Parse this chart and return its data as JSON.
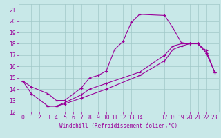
{
  "xlabel": "Windchill (Refroidissement éolien,°C)",
  "xlim": [
    -0.5,
    23.5
  ],
  "ylim": [
    12,
    21.5
  ],
  "xticks": [
    0,
    1,
    2,
    3,
    4,
    5,
    6,
    7,
    8,
    9,
    10,
    11,
    12,
    13,
    14,
    17,
    18,
    19,
    20,
    21,
    22,
    23
  ],
  "yticks": [
    12,
    13,
    14,
    15,
    16,
    17,
    18,
    19,
    20,
    21
  ],
  "bg_color": "#c8e8e8",
  "line_color": "#990099",
  "grid_color": "#a0c8c8",
  "lines": [
    {
      "x": [
        0,
        1,
        3,
        4,
        5,
        7,
        8,
        9,
        10,
        11,
        12,
        13,
        14,
        17,
        18,
        19,
        20,
        21,
        22,
        23
      ],
      "y": [
        14.7,
        14.2,
        13.6,
        13.0,
        13.0,
        14.1,
        15.0,
        15.2,
        15.6,
        17.5,
        18.2,
        19.9,
        20.6,
        20.5,
        19.4,
        18.1,
        18.0,
        18.0,
        17.4,
        15.5
      ]
    },
    {
      "x": [
        3,
        4,
        5,
        7,
        10,
        14,
        17,
        18,
        19,
        20,
        21,
        22,
        23
      ],
      "y": [
        12.5,
        12.5,
        12.7,
        13.2,
        14.0,
        15.2,
        16.5,
        17.5,
        17.8,
        18.0,
        18.0,
        17.2,
        15.5
      ]
    },
    {
      "x": [
        0,
        1,
        3,
        4,
        5,
        7,
        8,
        10,
        14,
        17,
        18,
        19,
        20,
        21,
        22,
        23
      ],
      "y": [
        14.7,
        13.6,
        12.5,
        12.5,
        12.8,
        13.5,
        14.0,
        14.5,
        15.5,
        17.0,
        17.8,
        18.0,
        18.0,
        18.0,
        17.2,
        15.5
      ]
    }
  ],
  "marker": "+",
  "markersize": 3,
  "linewidth": 0.8,
  "tick_fontsize": 5.5,
  "xlabel_fontsize": 5.5
}
